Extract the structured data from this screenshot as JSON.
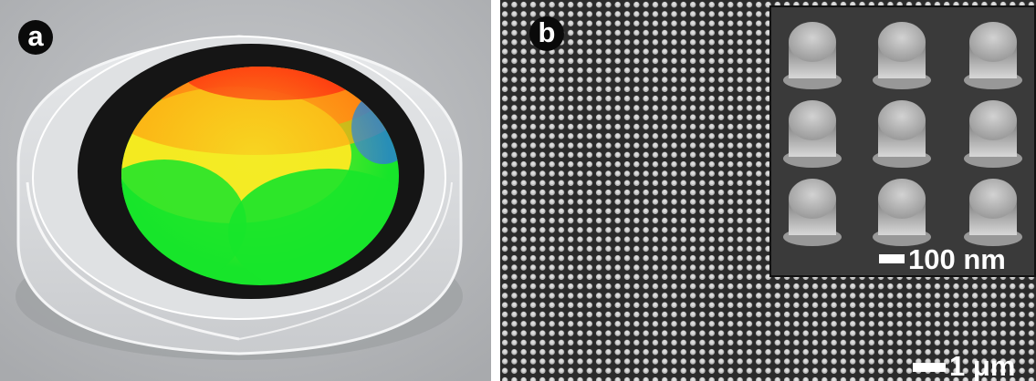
{
  "panel_a": {
    "label": "a",
    "colors": {
      "background": "#b9bbbe",
      "dish": "#d8dadc",
      "wafer_ring": "#151515",
      "grating_red": "#ff2a10",
      "grating_yellow": "#f2e21a",
      "grating_green": "#17e52a",
      "grating_blue": "#2b7fd0"
    }
  },
  "panel_b": {
    "label": "b",
    "main_scale_label": "1 μm",
    "inset_scale_label": "100 nm",
    "colors": {
      "background": "#2b2b2b",
      "pillar": "#bdbdbd",
      "inset_background": "#3a3a3a"
    }
  }
}
